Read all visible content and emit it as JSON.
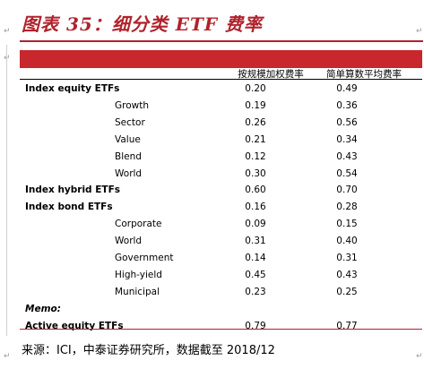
{
  "title": "图表 35：细分类 ETF 费率",
  "header": {
    "col1": "按规模加权费率",
    "col2": "简单算数平均费率"
  },
  "rows": [
    {
      "label": "Index equity ETFs",
      "v1": "0.20",
      "v2": "0.49",
      "style": "bold"
    },
    {
      "label": "Growth",
      "v1": "0.19",
      "v2": "0.36",
      "style": "sub"
    },
    {
      "label": "Sector",
      "v1": "0.26",
      "v2": "0.56",
      "style": "sub"
    },
    {
      "label": "Value",
      "v1": "0.21",
      "v2": "0.34",
      "style": "sub"
    },
    {
      "label": "Blend",
      "v1": "0.12",
      "v2": "0.43",
      "style": "sub"
    },
    {
      "label": "World",
      "v1": "0.30",
      "v2": "0.54",
      "style": "sub"
    },
    {
      "label": "Index hybrid ETFs",
      "v1": "0.60",
      "v2": "0.70",
      "style": "bold"
    },
    {
      "label": "Index bond ETFs",
      "v1": "0.16",
      "v2": "0.28",
      "style": "bold"
    },
    {
      "label": "Corporate",
      "v1": "0.09",
      "v2": "0.15",
      "style": "sub"
    },
    {
      "label": "World",
      "v1": "0.31",
      "v2": "0.40",
      "style": "sub"
    },
    {
      "label": "Government",
      "v1": "0.14",
      "v2": "0.31",
      "style": "sub"
    },
    {
      "label": "High-yield",
      "v1": "0.45",
      "v2": "0.43",
      "style": "sub"
    },
    {
      "label": "Municipal",
      "v1": "0.23",
      "v2": "0.25",
      "style": "sub"
    },
    {
      "label": "Memo:",
      "v1": "",
      "v2": "",
      "style": "ital"
    },
    {
      "label": "Active equity ETFs",
      "v1": "0.79",
      "v2": "0.77",
      "style": "bold"
    }
  ],
  "source": "来源：ICI，中泰证券研究所，数据截至 2018/12",
  "paragraph_mark": "↵",
  "colors": {
    "accent": "#c8272d",
    "title": "#b0222c"
  }
}
